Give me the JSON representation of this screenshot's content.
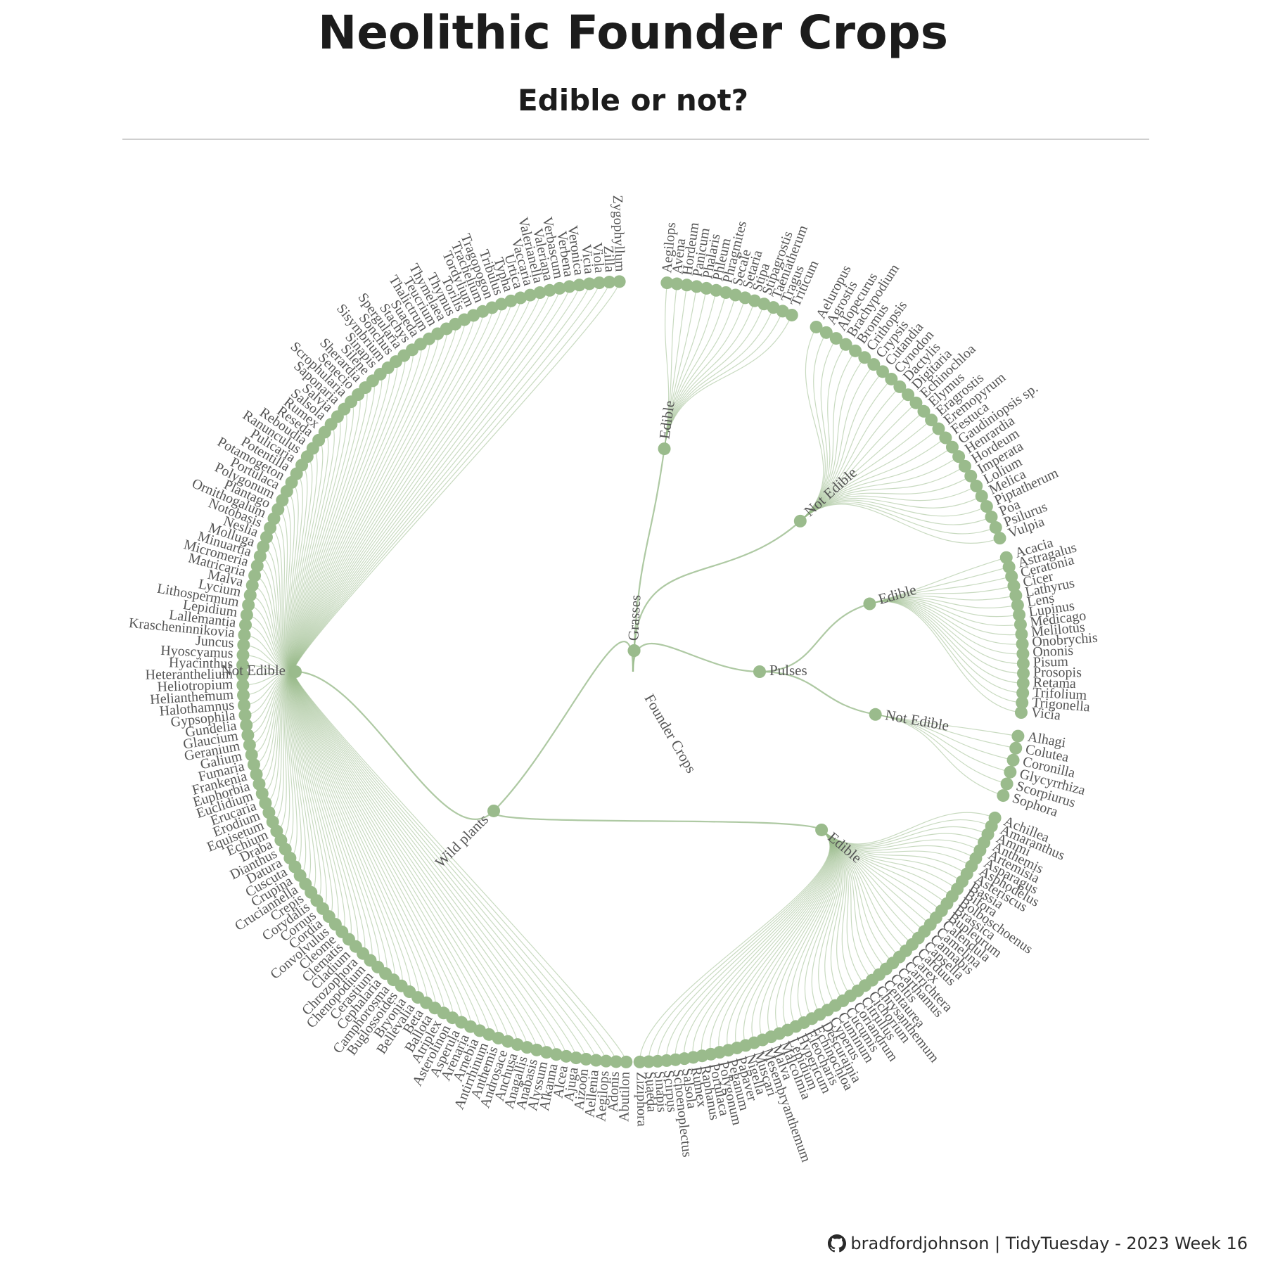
{
  "title": "Neolithic Founder Crops",
  "subtitle": "Edible or not?",
  "footer": {
    "icon": "github-icon",
    "text": "bradfordjohnson | TidyTuesday - 2023 Week 16"
  },
  "colors": {
    "node": "#9abb8c",
    "link": "#9abb8c",
    "label": "#555555",
    "title": "#1c1c1c",
    "rule": "#cfcfcf"
  },
  "tree": {
    "label": "Founder Crops",
    "children": [
      {
        "label": "Grasses",
        "children": [
          {
            "label": "Edible",
            "leaves": [
              "Aegilops",
              "Avena",
              "Hordeum",
              "Panicum",
              "Phalaris",
              "Phleum",
              "Phragmites",
              "Secale",
              "Setaria",
              "Stipa",
              "Stipagrostis",
              "Taeniatherum",
              "Tragus",
              "Triticum"
            ]
          },
          {
            "label": "Not Edible",
            "leaves": [
              "Aeluropus",
              "Agrostis",
              "Alopecurus",
              "Brachypodium",
              "Bromus",
              "Crithopsis",
              "Crypsis",
              "Cutandia",
              "Cynodon",
              "Dactylis",
              "Digitaria",
              "Echinochloa",
              "Elymus",
              "Eragrostis",
              "Eremopyrum",
              "Festuca",
              "Gaudiniopsis sp.",
              "Henrardia",
              "Hordeum",
              "Imperata",
              "Lolium",
              "Melica",
              "Piptatherum",
              "Poa",
              "Psilurus",
              "Vulpia"
            ]
          }
        ]
      },
      {
        "label": "Pulses",
        "children": [
          {
            "label": "Edible",
            "leaves": [
              "Acacia",
              "Astragalus",
              "Ceratonia",
              "Cicer",
              "Lathyrus",
              "Lens",
              "Lupinus",
              "Medicago",
              "Melilotus",
              "Onobrychis",
              "Ononis",
              "Pisum",
              "Prosopis",
              "Retama",
              "Trifolium",
              "Trigonella",
              "Vicia"
            ]
          },
          {
            "label": "Not Edible",
            "leaves": [
              "Alhagi",
              "Colutea",
              "Coronilla",
              "Glycyrrhiza",
              "Scorpiurus",
              "Sophora"
            ]
          }
        ]
      },
      {
        "label": "Wild plants",
        "children": [
          {
            "label": "Edible",
            "leaves": [
              "Achillea",
              "Amaranthus",
              "Ammi",
              "Anthemis",
              "Artemisia",
              "Asparagus",
              "Asphodelus",
              "Asteriscus",
              "Bassia",
              "Biforа",
              "Bolboschoenus",
              "Brassica",
              "Bupleurum",
              "Calendula",
              "Camelina",
              "Cannabis",
              "Capsella",
              "Carduus",
              "Carex",
              "Carrichtera",
              "Carthamus",
              "Celtis",
              "Centaurea",
              "Chrysanthemum",
              "Cichorium",
              "Citrullus",
              "Coriandrum",
              "Cucumis",
              "Cuminum",
              "Cyperus",
              "Descurainia",
              "Echinochloa",
              "Eleocharis",
              "Hypericum",
              "Lepidium",
              "Malcolmia",
              "Malva",
              "Mesembryanthemum",
              "Muscari",
              "Nigella",
              "Papaver",
              "Peganum",
              "Polygonum",
              "Portulaca",
              "Raphanus",
              "Rumex",
              "Salsola",
              "Schoenoplectus",
              "Scirpus",
              "Sinapis",
              "Suaeda",
              "Ziziphora"
            ]
          },
          {
            "label": "Not Edible",
            "leaves": [
              "Abutilon",
              "Adonis",
              "Aegilops",
              "Aellenia",
              "Aizoon",
              "Ajuga",
              "Alcea",
              "Alkanna",
              "Alyssum",
              "Anabasis",
              "Anagallis",
              "Anchusa",
              "Androsace",
              "Anthemis",
              "Antirrhinum",
              "Arnebia",
              "Arenaria",
              "Asperula",
              "Asterolinon",
              "Atriplex",
              "Ballota",
              "Beta",
              "Bellevalia",
              "Bryonia",
              "Buglossoides",
              "Camphorosma",
              "Cephalaria",
              "Cerastium",
              "Chenopodium",
              "Chrozophora",
              "Cladium",
              "Clematis",
              "Cleome",
              "Convolvulus",
              "Cordia",
              "Cornus",
              "Corydalis",
              "Crepis",
              "Cruciannella",
              "Crupina",
              "Cuscuta",
              "Datura",
              "Dianthus",
              "Draba",
              "Echium",
              "Equisetum",
              "Erodium",
              "Erucaria",
              "Euclidium",
              "Euphorbia",
              "Frankenia",
              "Fumaria",
              "Galium",
              "Geranium",
              "Glaucium",
              "Gundelia",
              "Gypsophila",
              "Halothamnus",
              "Helianthemum",
              "Heliotropium",
              "Heteranthelium",
              "Hyacinthus",
              "Hyoscyamus",
              "Juncus",
              "Krascheninnikovia",
              "Lallemantia",
              "Lepidium",
              "Lithospermum",
              "Lycium",
              "Malva",
              "Matricaria",
              "Micromeria",
              "Minuartia",
              "Molluga",
              "Neslia",
              "Notobasis",
              "Ornithogalum",
              "Plantago",
              "Polygonum",
              "Portulaca",
              "Potamogeton",
              "Potentilla",
              "Pulicaria",
              "Ranunculus",
              "Reboudia",
              "Reseda",
              "Rumex",
              "Salsola",
              "Salvia",
              "Saponaria",
              "Scrophularia",
              "Senecio",
              "Sherardia",
              "Silene",
              "Sinapis",
              "Sisymbrium",
              "Sonchus",
              "Spergularia",
              "Stachys",
              "Suaeda",
              "Thalictrum",
              "Teucrium",
              "Thymelaea",
              "Thymus",
              "Torilis",
              "Tordylium",
              "Trachelium",
              "Tragopogon",
              "Tribulus",
              "Typha",
              "Urtica",
              "Vaccaria",
              "Valerianella",
              "Valeriana",
              "Verbascum",
              "Verbena",
              "Veronica",
              "Vicia",
              "Viola",
              "Zilla",
              "Zygophyllum"
            ]
          }
        ]
      }
    ]
  }
}
